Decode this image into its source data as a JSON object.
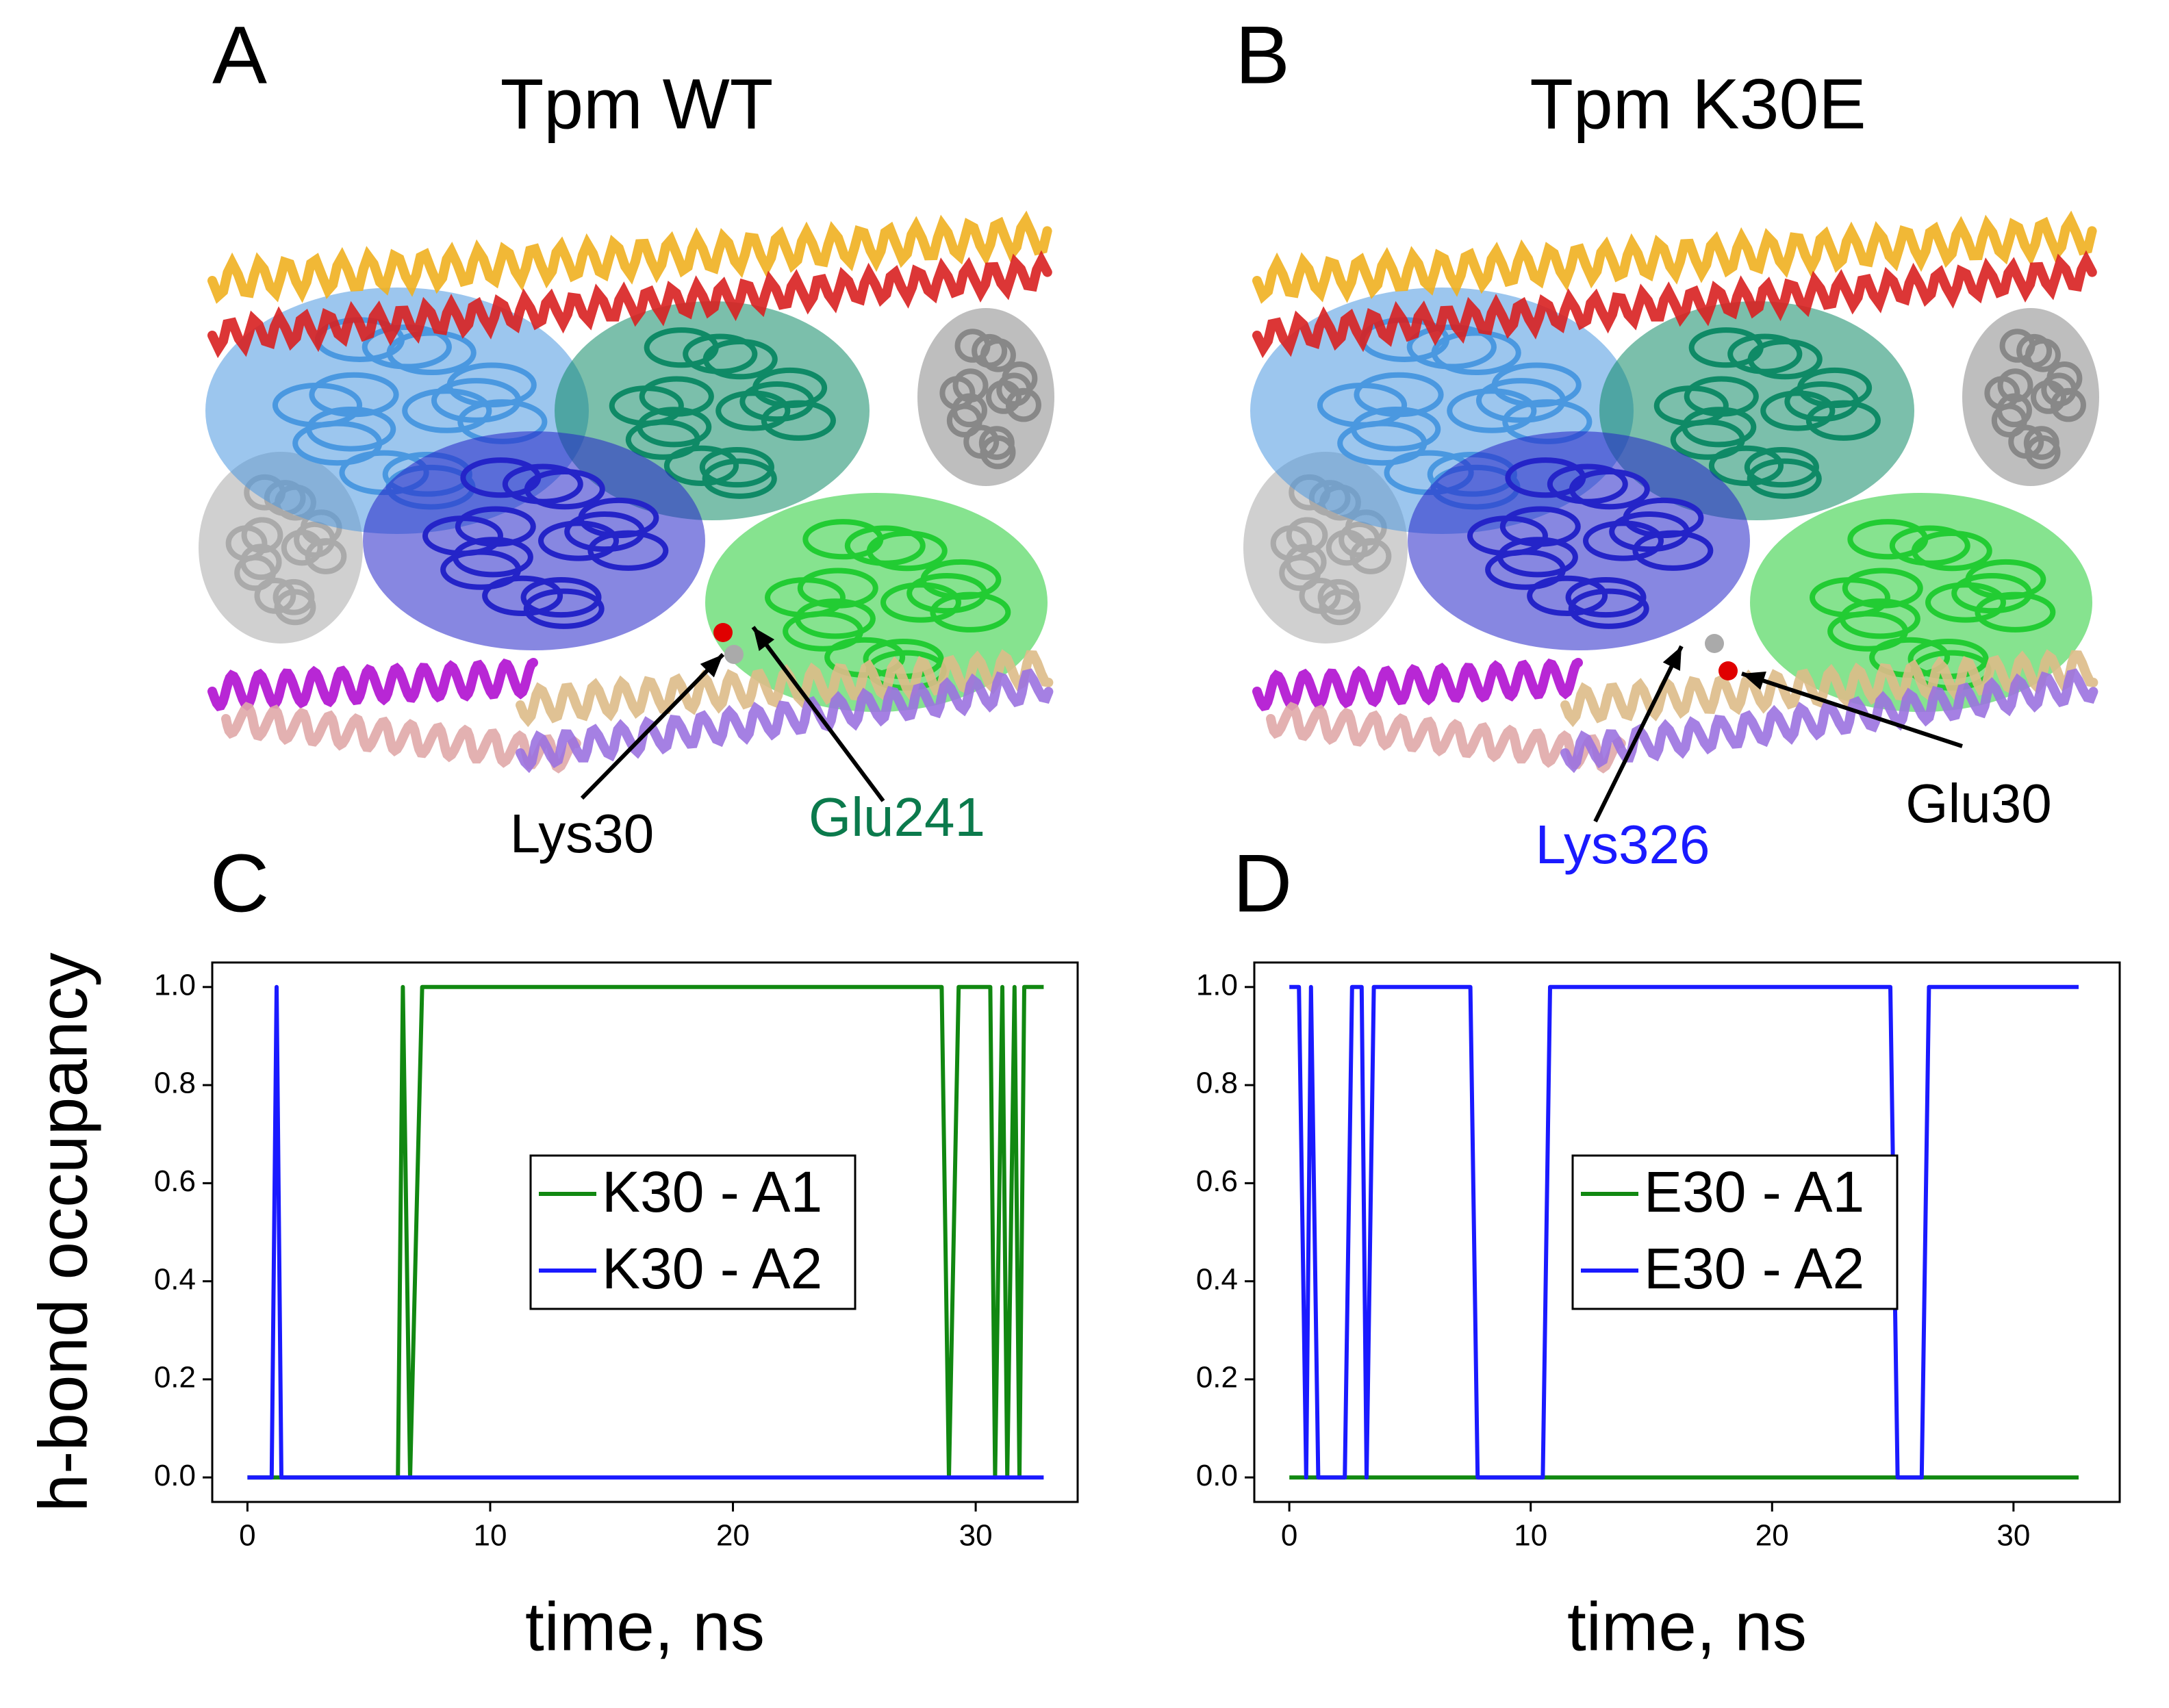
{
  "panels": [
    {
      "label": "A",
      "title": "Tpm WT",
      "annotations": [
        {
          "text": "Lys30",
          "color": "#000000"
        },
        {
          "text": "Glu241",
          "color": "#0b7a4c"
        }
      ]
    },
    {
      "label": "B",
      "title": "Tpm K30E",
      "annotations": [
        {
          "text": "Lys326",
          "color": "#1a1aff"
        },
        {
          "text": "Glu30",
          "color": "#000000"
        }
      ]
    }
  ],
  "chart_data": [
    {
      "type": "line",
      "panel": "C",
      "ylabel": "h-bond occupancy",
      "xlabel": "time, ns",
      "xlim": [
        -1.45,
        34.2
      ],
      "ylim": [
        -0.05,
        1.05
      ],
      "xticks": [
        0,
        10,
        20,
        30
      ],
      "yticks": [
        {
          "value": 0,
          "label": "0.0"
        },
        {
          "value": 0.2,
          "label": "0.2"
        },
        {
          "value": 0.4,
          "label": "0.4"
        },
        {
          "value": 0.6,
          "label": "0.6"
        },
        {
          "value": 0.8,
          "label": "0.8"
        },
        {
          "value": 1,
          "label": "1.0"
        }
      ],
      "legend": "center",
      "series": [
        {
          "name": "K30 - A1",
          "color": "#118811",
          "x": [
            0,
            6.2,
            6.4,
            6.7,
            7.2,
            28.6,
            28.9,
            29.3,
            30.6,
            30.8,
            31.1,
            31.3,
            31.6,
            31.8,
            32.0,
            32.8
          ],
          "values": [
            0,
            0,
            1,
            0,
            1,
            1,
            0,
            1,
            1,
            0,
            1,
            0,
            1,
            0,
            1,
            1
          ]
        },
        {
          "name": "K30 - A2",
          "color": "#1a1aff",
          "x": [
            0,
            1.0,
            1.2,
            1.4,
            32.8
          ],
          "values": [
            0,
            0,
            1,
            0,
            0
          ]
        }
      ]
    },
    {
      "type": "line",
      "panel": "D",
      "xlabel": "time, ns",
      "xlim": [
        -1.45,
        34.4
      ],
      "ylim": [
        -0.05,
        1.05
      ],
      "xticks": [
        0,
        10,
        20,
        30
      ],
      "yticks": [
        {
          "value": 0,
          "label": "0.0"
        },
        {
          "value": 0.2,
          "label": "0.2"
        },
        {
          "value": 0.4,
          "label": "0.4"
        },
        {
          "value": 0.6,
          "label": "0.6"
        },
        {
          "value": 0.8,
          "label": "0.8"
        },
        {
          "value": 1,
          "label": "1.0"
        }
      ],
      "legend": "center",
      "series": [
        {
          "name": "E30 - A1",
          "color": "#118811",
          "x": [
            0,
            32.7
          ],
          "values": [
            0,
            0
          ]
        },
        {
          "name": "E30 - A2",
          "color": "#1a1aff",
          "x": [
            0,
            0.4,
            0.7,
            0.9,
            1.2,
            2.3,
            2.6,
            3.0,
            3.2,
            3.5,
            7.5,
            7.8,
            10.5,
            10.8,
            24.9,
            25.2,
            26.2,
            26.5,
            32.7
          ],
          "values": [
            1,
            1,
            0,
            1,
            0,
            0,
            1,
            1,
            0,
            1,
            1,
            0,
            0,
            1,
            1,
            0,
            0,
            1,
            1
          ]
        }
      ]
    }
  ]
}
